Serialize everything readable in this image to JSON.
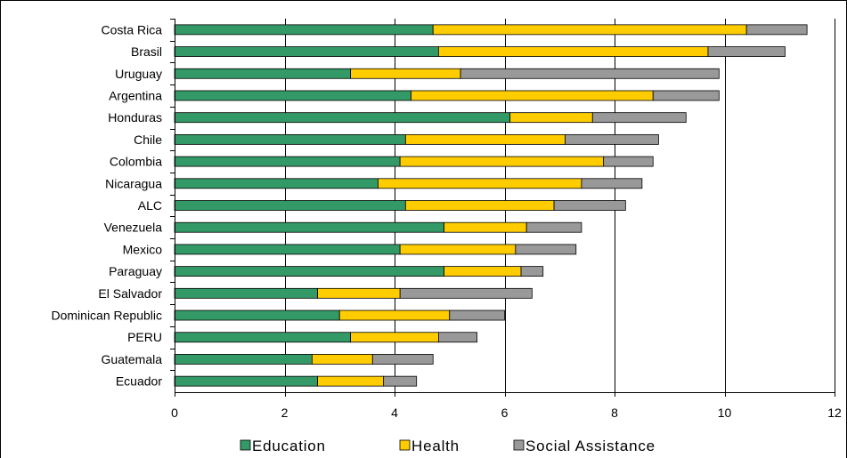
{
  "chart_data": {
    "type": "bar",
    "orientation": "horizontal",
    "stacked": true,
    "categories": [
      "Costa Rica",
      "Brasil",
      "Uruguay",
      "Argentina",
      "Honduras",
      "Chile",
      "Colombia",
      "Nicaragua",
      "ALC",
      "Venezuela",
      "Mexico",
      "Paraguay",
      "El Salvador",
      "Dominican Republic",
      "PERU",
      "Guatemala",
      "Ecuador"
    ],
    "series": [
      {
        "name": "Education",
        "color": "#339966",
        "values": [
          4.7,
          4.8,
          3.2,
          4.3,
          6.1,
          4.2,
          4.1,
          3.7,
          4.2,
          4.9,
          4.1,
          4.9,
          2.6,
          3.0,
          3.2,
          2.5,
          2.6
        ]
      },
      {
        "name": "Health",
        "color": "#FFCC00",
        "values": [
          5.7,
          4.9,
          2.0,
          4.4,
          1.5,
          2.9,
          3.7,
          3.7,
          2.7,
          1.5,
          2.1,
          1.4,
          1.5,
          2.0,
          1.6,
          1.1,
          1.2
        ]
      },
      {
        "name": "Social Assistance",
        "color": "#999999",
        "values": [
          1.1,
          1.4,
          4.7,
          1.2,
          1.7,
          1.7,
          0.9,
          1.1,
          1.3,
          1.0,
          1.1,
          0.4,
          2.4,
          1.0,
          0.7,
          1.1,
          0.6
        ]
      }
    ],
    "xlim": [
      0,
      12
    ],
    "xticks": [
      "0",
      "2",
      "4",
      "6",
      "8",
      "10",
      "12"
    ],
    "grid": true,
    "legend_position": "bottom",
    "title": "",
    "xlabel": "",
    "ylabel": ""
  }
}
